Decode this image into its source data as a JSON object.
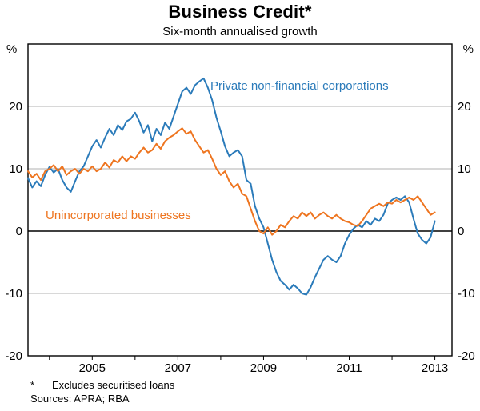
{
  "title": "Business Credit*",
  "subtitle": "Six-month annualised growth",
  "footnote_star": "*",
  "footnote_text": "Excludes securitised loans",
  "sources": "Sources: APRA; RBA",
  "chart_data": {
    "type": "line",
    "title": "Business Credit*",
    "subtitle": "Six-month annualised growth",
    "unit_left": "%",
    "unit_right": "%",
    "grid": true,
    "ylim": [
      -20,
      30
    ],
    "yticks": [
      -20,
      -10,
      0,
      10,
      20
    ],
    "xlim": [
      2003.5,
      2013.4
    ],
    "xticks_labeled": [
      2005,
      2007,
      2009,
      2011,
      2013
    ],
    "xticks_minor": [
      2004,
      2005,
      2006,
      2007,
      2008,
      2009,
      2010,
      2011,
      2012,
      2013
    ],
    "x_start": 2003.5,
    "x_step": 0.1,
    "axis_color": "#000000",
    "gridline_color": "#b0b0b0",
    "series": [
      {
        "name": "Private non-financial corporations",
        "color": "#2b7bba",
        "values": [
          8.5,
          7.0,
          8.0,
          7.2,
          9.0,
          10.3,
          9.4,
          10.0,
          8.2,
          7.0,
          6.3,
          8.0,
          9.6,
          10.4,
          12.0,
          13.6,
          14.6,
          13.4,
          15.0,
          16.4,
          15.4,
          17.0,
          16.2,
          17.6,
          18.0,
          19.0,
          17.6,
          15.8,
          17.0,
          14.4,
          16.4,
          15.4,
          17.4,
          16.4,
          18.4,
          20.4,
          22.4,
          23.0,
          22.0,
          23.4,
          24.0,
          24.5,
          23.0,
          21.0,
          18.2,
          16.0,
          13.6,
          12.0,
          12.6,
          13.0,
          12.0,
          8.2,
          7.6,
          4.0,
          2.0,
          0.6,
          -2.0,
          -4.6,
          -6.6,
          -8.0,
          -8.6,
          -9.4,
          -8.6,
          -9.2,
          -10.0,
          -10.2,
          -9.0,
          -7.4,
          -6.0,
          -4.6,
          -4.0,
          -4.6,
          -5.0,
          -4.0,
          -2.0,
          -0.6,
          0.4,
          1.0,
          0.6,
          1.6,
          1.0,
          2.0,
          1.6,
          2.6,
          4.4,
          5.0,
          5.4,
          5.0,
          5.6,
          4.6,
          2.0,
          -0.4,
          -1.4,
          -2.0,
          -1.0,
          1.6
        ]
      },
      {
        "name": "Unincorporated businesses",
        "color": "#ee7520",
        "values": [
          9.6,
          8.6,
          9.2,
          8.2,
          9.6,
          10.0,
          10.6,
          9.6,
          10.4,
          9.0,
          9.6,
          10.0,
          9.2,
          10.0,
          9.6,
          10.4,
          9.6,
          10.0,
          11.0,
          10.2,
          11.4,
          11.0,
          12.0,
          11.2,
          12.0,
          11.6,
          12.6,
          13.4,
          12.6,
          13.0,
          14.0,
          13.2,
          14.4,
          15.0,
          15.4,
          16.0,
          16.5,
          15.6,
          16.0,
          14.6,
          13.6,
          12.6,
          13.0,
          11.6,
          10.0,
          9.0,
          9.6,
          8.0,
          7.0,
          7.6,
          6.0,
          5.6,
          3.6,
          1.6,
          0.0,
          -0.4,
          0.6,
          -0.6,
          0.0,
          1.0,
          0.6,
          1.6,
          2.4,
          2.0,
          3.0,
          2.4,
          3.0,
          2.0,
          2.6,
          3.0,
          2.4,
          2.0,
          2.6,
          2.0,
          1.6,
          1.4,
          1.0,
          0.8,
          1.6,
          2.6,
          3.6,
          4.0,
          4.4,
          4.0,
          4.6,
          4.4,
          5.0,
          4.6,
          5.0,
          5.4,
          5.0,
          5.6,
          4.6,
          3.6,
          2.6,
          3.0
        ]
      }
    ]
  }
}
